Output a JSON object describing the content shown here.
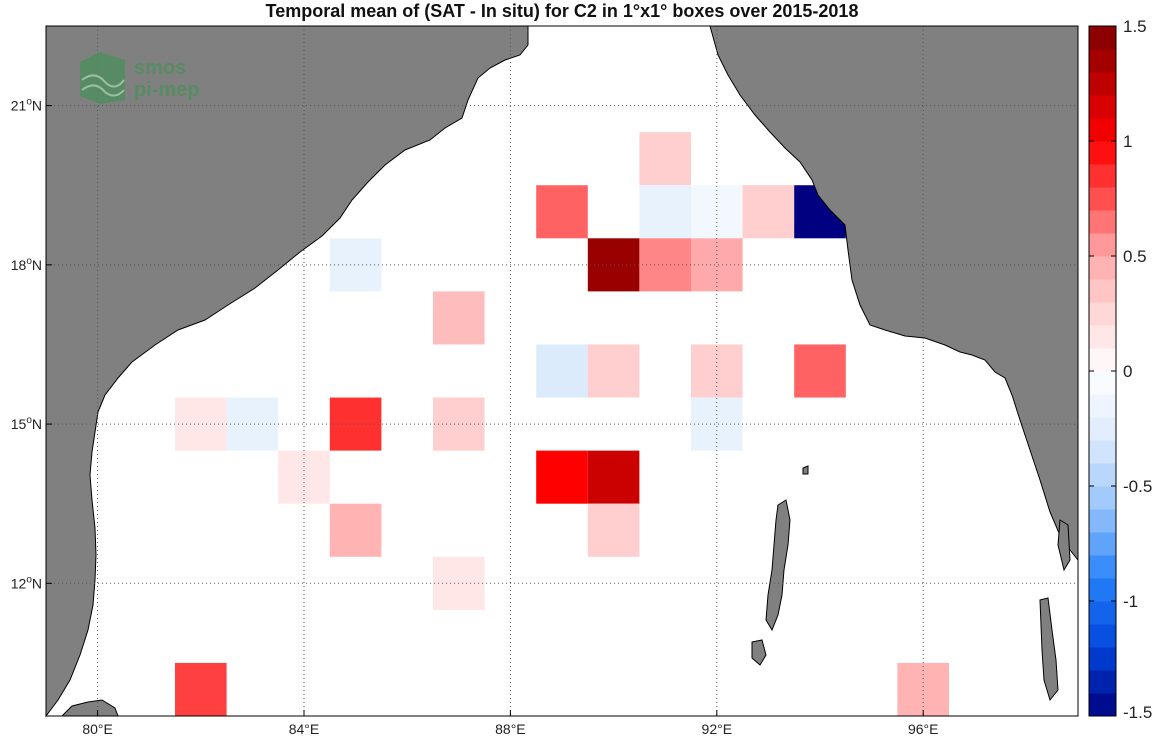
{
  "title": "Temporal mean of (SAT - In situ) for C2 in 1°x1° boxes over 2015-2018",
  "logo": {
    "line1": "smos",
    "line2": "pi-mep"
  },
  "chart_data": {
    "type": "heatmap",
    "lon_range": [
      79,
      99
    ],
    "lat_range": [
      9.5,
      22.5
    ],
    "lon_ticks": [
      {
        "value": 80,
        "label": "80°E"
      },
      {
        "value": 84,
        "label": "84°E"
      },
      {
        "value": 88,
        "label": "88°E"
      },
      {
        "value": 92,
        "label": "92°E"
      },
      {
        "value": 96,
        "label": "96°E"
      }
    ],
    "lat_ticks": [
      {
        "value": 12,
        "base": "12",
        "sup": "o",
        "hemi": "N"
      },
      {
        "value": 15,
        "base": "15",
        "sup": "o",
        "hemi": "N"
      },
      {
        "value": 18,
        "base": "18",
        "sup": "o",
        "hemi": "N"
      },
      {
        "value": 21,
        "base": "21",
        "sup": "o",
        "hemi": "N"
      }
    ],
    "grid": true,
    "cells": [
      {
        "lon": 91,
        "lat": 20,
        "value": 0.3
      },
      {
        "lon": 89,
        "lat": 19,
        "value": 0.7
      },
      {
        "lon": 91,
        "lat": 19,
        "value": -0.2
      },
      {
        "lon": 92,
        "lat": 19,
        "value": -0.1
      },
      {
        "lon": 93,
        "lat": 19,
        "value": 0.3
      },
      {
        "lon": 94,
        "lat": 19,
        "value": -1.5
      },
      {
        "lon": 85,
        "lat": 18,
        "value": -0.2
      },
      {
        "lon": 90,
        "lat": 18,
        "value": 1.4
      },
      {
        "lon": 91,
        "lat": 18,
        "value": 0.6
      },
      {
        "lon": 92,
        "lat": 18,
        "value": 0.5
      },
      {
        "lon": 87,
        "lat": 17,
        "value": 0.4
      },
      {
        "lon": 89,
        "lat": 16,
        "value": -0.3
      },
      {
        "lon": 90,
        "lat": 16,
        "value": 0.3
      },
      {
        "lon": 92,
        "lat": 16,
        "value": 0.3
      },
      {
        "lon": 94,
        "lat": 16,
        "value": 0.7
      },
      {
        "lon": 82,
        "lat": 15,
        "value": 0.15
      },
      {
        "lon": 83,
        "lat": 15,
        "value": -0.2
      },
      {
        "lon": 85,
        "lat": 15,
        "value": 0.85
      },
      {
        "lon": 87,
        "lat": 15,
        "value": 0.3
      },
      {
        "lon": 92,
        "lat": 15,
        "value": -0.2
      },
      {
        "lon": 84,
        "lat": 14,
        "value": 0.15
      },
      {
        "lon": 89,
        "lat": 14,
        "value": 1.0
      },
      {
        "lon": 90,
        "lat": 14,
        "value": 1.2
      },
      {
        "lon": 85,
        "lat": 13,
        "value": 0.45
      },
      {
        "lon": 90,
        "lat": 13,
        "value": 0.3
      },
      {
        "lon": 87,
        "lat": 12,
        "value": 0.15
      },
      {
        "lon": 82,
        "lat": 10,
        "value": 0.8
      },
      {
        "lon": 96,
        "lat": 10,
        "value": 0.45
      }
    ],
    "colorbar": {
      "min": -1.5,
      "max": 1.5,
      "levels": 30,
      "ticks": [
        {
          "value": 1.5,
          "label": "1.5"
        },
        {
          "value": 1,
          "label": "1"
        },
        {
          "value": 0.5,
          "label": "0.5"
        },
        {
          "value": 0,
          "label": "0"
        },
        {
          "value": -0.5,
          "label": "-0.5"
        },
        {
          "value": -1,
          "label": "-1"
        },
        {
          "value": -1.5,
          "label": "-1.5"
        }
      ]
    }
  },
  "colors": {
    "land": "#808080",
    "ocean": "#ffffff",
    "grid": "#666666",
    "logo": "#4a8f5a"
  }
}
